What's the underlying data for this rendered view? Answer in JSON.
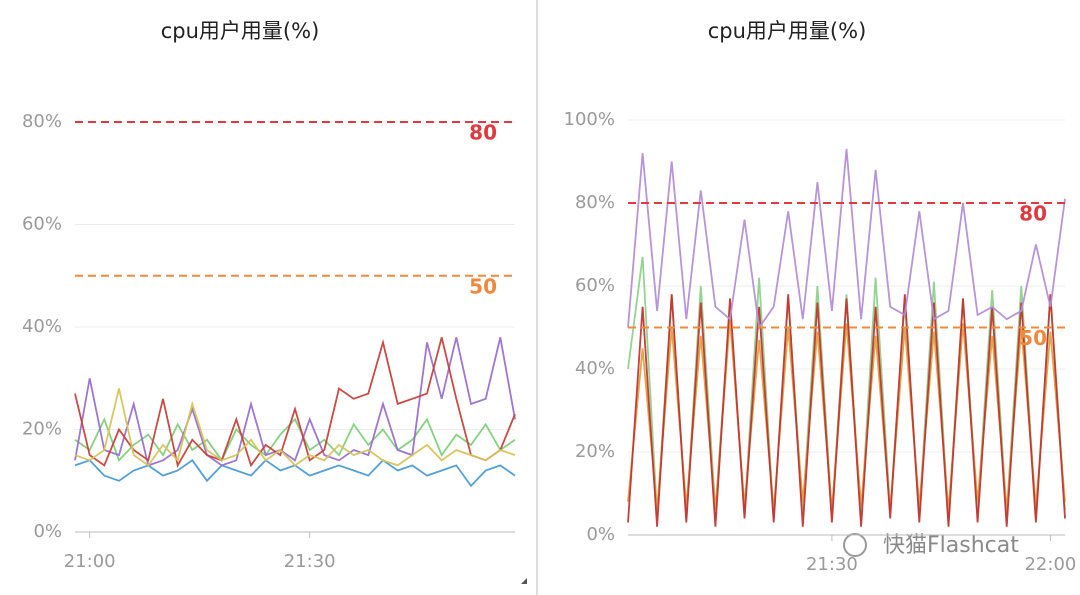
{
  "chart_data": [
    {
      "type": "line",
      "title": "cpu用户用量(%)",
      "categories": [
        null,
        "21:00",
        null,
        null,
        null,
        null,
        null,
        null,
        null,
        null,
        null,
        null,
        null,
        null,
        null,
        null,
        "21:30",
        null,
        null,
        null,
        null,
        null,
        null,
        null,
        null,
        null,
        null,
        null,
        null,
        null,
        null
      ],
      "ylim": [
        0,
        90
      ],
      "yticks": [
        {
          "value": 0,
          "label": "0%"
        },
        {
          "value": 20,
          "label": "20%"
        },
        {
          "value": 40,
          "label": "40%"
        },
        {
          "value": 60,
          "label": "60%"
        },
        {
          "value": 80,
          "label": "80%"
        }
      ],
      "grid": true,
      "thresholds": [
        {
          "value": 80,
          "color": "#e0393e"
        },
        {
          "value": 50,
          "color": "#f0883e"
        }
      ],
      "series": [
        {
          "color": "#4a9bd6",
          "values": [
            13,
            14,
            11,
            10,
            12,
            13,
            11,
            12,
            14,
            10,
            13,
            12,
            11,
            14,
            12,
            13,
            11,
            12,
            13,
            12,
            11,
            14,
            12,
            13,
            11,
            12,
            13,
            9,
            12,
            13,
            11
          ]
        },
        {
          "color": "#7fcf7a",
          "values": [
            18,
            16,
            22,
            14,
            17,
            19,
            15,
            21,
            16,
            18,
            14,
            20,
            17,
            15,
            19,
            22,
            16,
            18,
            15,
            21,
            17,
            20,
            16,
            18,
            22,
            15,
            19,
            17,
            21,
            16,
            18
          ]
        },
        {
          "color": "#9a6fd0",
          "values": [
            14,
            30,
            16,
            15,
            25,
            13,
            14,
            16,
            24,
            15,
            13,
            14,
            25,
            15,
            16,
            14,
            22,
            15,
            14,
            16,
            15,
            25,
            16,
            15,
            37,
            26,
            38,
            25,
            26,
            38,
            22
          ]
        },
        {
          "color": "#c8403a",
          "values": [
            27,
            15,
            13,
            20,
            16,
            14,
            26,
            13,
            18,
            15,
            14,
            22,
            13,
            17,
            15,
            24,
            14,
            16,
            28,
            26,
            27,
            37,
            25,
            26,
            27,
            38,
            26,
            15,
            14,
            16,
            23
          ]
        },
        {
          "color": "#d7c35a",
          "values": [
            15,
            14,
            16,
            28,
            15,
            13,
            17,
            14,
            25,
            16,
            14,
            15,
            18,
            14,
            16,
            13,
            15,
            14,
            17,
            15,
            16,
            14,
            13,
            15,
            17,
            14,
            16,
            15,
            14,
            16,
            15
          ]
        }
      ]
    },
    {
      "type": "line",
      "title": "cpu用户用量(%)",
      "categories": [
        null,
        null,
        null,
        null,
        null,
        null,
        null,
        null,
        null,
        null,
        null,
        null,
        null,
        null,
        "21:30",
        null,
        null,
        null,
        null,
        null,
        null,
        null,
        null,
        null,
        null,
        null,
        null,
        null,
        null,
        "22:00",
        null
      ],
      "ylim": [
        0,
        100
      ],
      "yticks": [
        {
          "value": 0,
          "label": "0%"
        },
        {
          "value": 20,
          "label": "20%"
        },
        {
          "value": 40,
          "label": "40%"
        },
        {
          "value": 60,
          "label": "60%"
        },
        {
          "value": 80,
          "label": "80%"
        },
        {
          "value": 100,
          "label": "100%"
        }
      ],
      "grid": true,
      "thresholds": [
        {
          "value": 80,
          "color": "#e0393e"
        },
        {
          "value": 50,
          "color": "#f0883e"
        }
      ],
      "series": [
        {
          "color": "#8fd18a",
          "values": [
            40,
            67,
            5,
            58,
            4,
            60,
            6,
            55,
            5,
            62,
            4,
            57,
            6,
            60,
            5,
            58,
            4,
            62,
            6,
            56,
            5,
            61,
            4,
            57,
            6,
            59,
            5,
            60,
            4,
            58,
            6
          ]
        },
        {
          "color": "#e0a040",
          "values": [
            8,
            45,
            6,
            50,
            7,
            48,
            6,
            52,
            7,
            47,
            6,
            50,
            8,
            49,
            6,
            51,
            7,
            48,
            6,
            50,
            7,
            49,
            6,
            51,
            8,
            48,
            6,
            50,
            7,
            49,
            8
          ]
        },
        {
          "color": "#c23531",
          "values": [
            3,
            55,
            2,
            58,
            3,
            56,
            2,
            57,
            4,
            55,
            3,
            58,
            2,
            56,
            3,
            57,
            2,
            55,
            4,
            58,
            3,
            56,
            2,
            57,
            3,
            55,
            2,
            56,
            3,
            58,
            4
          ]
        },
        {
          "color": "#b38fd6",
          "values": [
            50,
            92,
            54,
            90,
            52,
            83,
            55,
            52,
            76,
            50,
            55,
            78,
            52,
            85,
            54,
            93,
            52,
            88,
            55,
            53,
            78,
            52,
            54,
            80,
            53,
            55,
            52,
            54,
            70,
            55,
            81
          ]
        }
      ]
    }
  ],
  "watermark": "快猫Flashcat"
}
